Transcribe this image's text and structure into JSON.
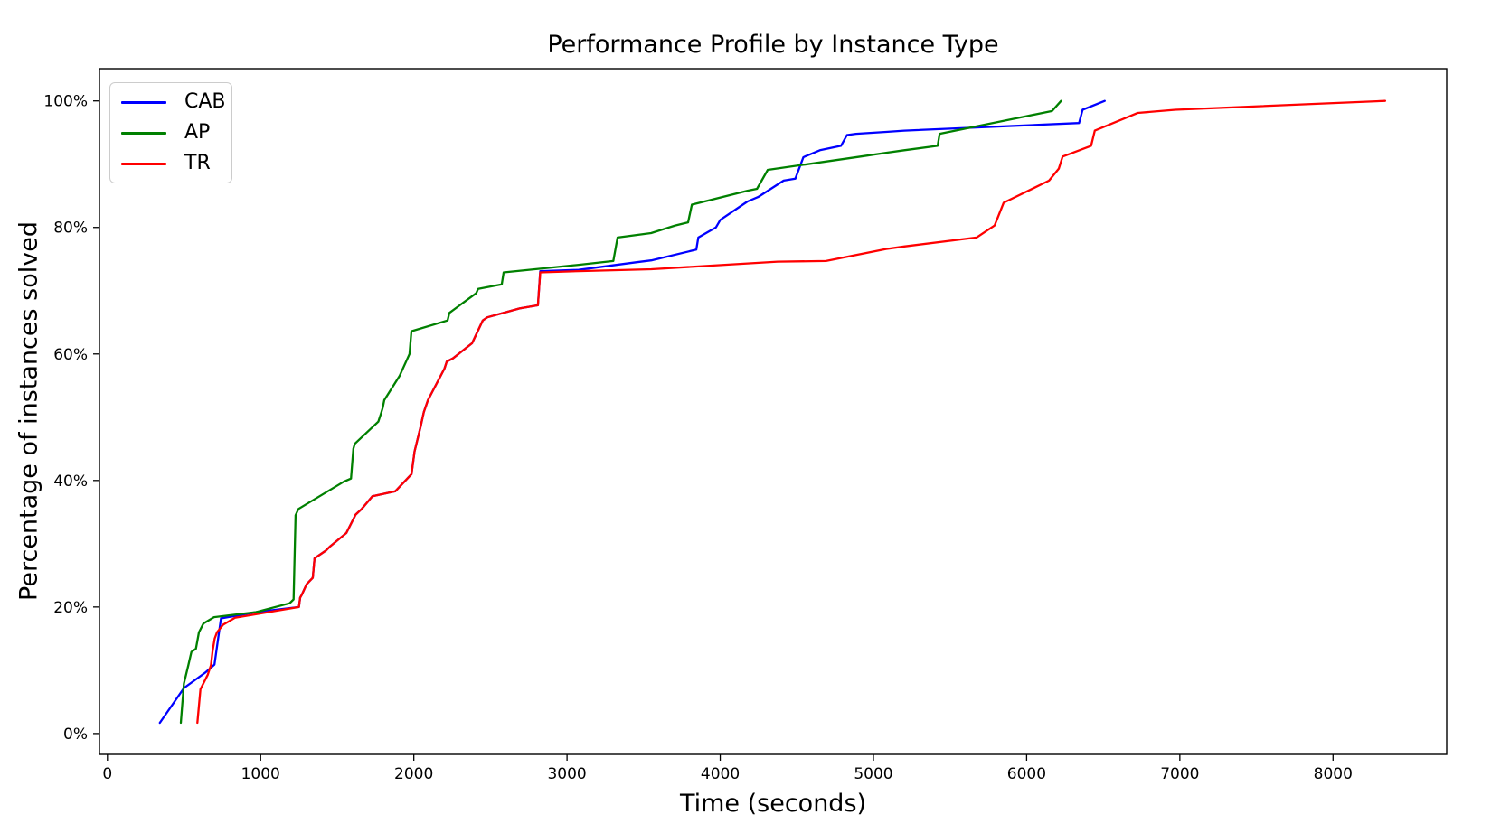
{
  "chart_data": {
    "type": "line",
    "title": "Performance Profile by Instance Type",
    "xlabel": "Time (seconds)",
    "ylabel": "Percentage of instances solved",
    "x_ticks": [
      0,
      1000,
      2000,
      3000,
      4000,
      5000,
      6000,
      7000,
      8000
    ],
    "x_tick_labels": [
      "0",
      "1000",
      "2000",
      "3000",
      "4000",
      "5000",
      "6000",
      "7000",
      "8000"
    ],
    "y_ticks": [
      0,
      20,
      40,
      60,
      80,
      100
    ],
    "y_tick_labels": [
      "0%",
      "20%",
      "40%",
      "60%",
      "80%",
      "100%"
    ],
    "xlim": [
      -52,
      8742
    ],
    "ylim": [
      -3.3,
      105.1
    ],
    "grid": false,
    "background_color": "#ffffff",
    "axis_color": "#000000",
    "legend": {
      "position": "upper-left",
      "entries": [
        "CAB",
        "AP",
        "TR"
      ]
    },
    "series": [
      {
        "name": "CAB",
        "color": "#0000ff",
        "points": [
          [
            342,
            1.7
          ],
          [
            500,
            7.2
          ],
          [
            637,
            9.6
          ],
          [
            699,
            10.9
          ],
          [
            741,
            18.2
          ],
          [
            971,
            19.2
          ],
          [
            1250,
            20.0
          ],
          [
            1258,
            21.5
          ],
          [
            1270,
            22.0
          ],
          [
            1300,
            23.6
          ],
          [
            1340,
            24.6
          ],
          [
            1352,
            27.7
          ],
          [
            1425,
            28.9
          ],
          [
            1455,
            29.6
          ],
          [
            1560,
            31.7
          ],
          [
            1620,
            34.6
          ],
          [
            1660,
            35.5
          ],
          [
            1730,
            37.5
          ],
          [
            1880,
            38.3
          ],
          [
            1985,
            41.0
          ],
          [
            2005,
            44.6
          ],
          [
            2043,
            48.4
          ],
          [
            2065,
            50.8
          ],
          [
            2092,
            52.7
          ],
          [
            2200,
            57.7
          ],
          [
            2215,
            58.8
          ],
          [
            2255,
            59.3
          ],
          [
            2380,
            61.7
          ],
          [
            2450,
            65.3
          ],
          [
            2480,
            65.8
          ],
          [
            2690,
            67.2
          ],
          [
            2810,
            67.7
          ],
          [
            2825,
            73.1
          ],
          [
            3076,
            73.3
          ],
          [
            3450,
            74.5
          ],
          [
            3550,
            74.8
          ],
          [
            3844,
            76.5
          ],
          [
            3857,
            78.4
          ],
          [
            3972,
            80.0
          ],
          [
            4001,
            81.2
          ],
          [
            4178,
            84.1
          ],
          [
            4247,
            84.8
          ],
          [
            4414,
            87.4
          ],
          [
            4490,
            87.7
          ],
          [
            4543,
            91.1
          ],
          [
            4651,
            92.2
          ],
          [
            4788,
            92.9
          ],
          [
            4827,
            94.6
          ],
          [
            4886,
            94.8
          ],
          [
            5083,
            95.1
          ],
          [
            5201,
            95.3
          ],
          [
            6342,
            96.5
          ],
          [
            6365,
            98.6
          ],
          [
            6510,
            100.0
          ]
        ]
      },
      {
        "name": "AP",
        "color": "#008000",
        "points": [
          [
            479,
            1.7
          ],
          [
            499,
            7.9
          ],
          [
            528,
            10.8
          ],
          [
            548,
            12.9
          ],
          [
            578,
            13.4
          ],
          [
            597,
            16.0
          ],
          [
            627,
            17.4
          ],
          [
            696,
            18.4
          ],
          [
            971,
            19.2
          ],
          [
            1190,
            20.6
          ],
          [
            1215,
            21.2
          ],
          [
            1228,
            34.5
          ],
          [
            1247,
            35.5
          ],
          [
            1542,
            39.8
          ],
          [
            1590,
            40.3
          ],
          [
            1605,
            45.0
          ],
          [
            1615,
            45.8
          ],
          [
            1768,
            49.3
          ],
          [
            1785,
            50.5
          ],
          [
            1797,
            51.5
          ],
          [
            1807,
            52.7
          ],
          [
            1906,
            56.5
          ],
          [
            1972,
            60.0
          ],
          [
            1984,
            63.6
          ],
          [
            2220,
            65.3
          ],
          [
            2232,
            66.5
          ],
          [
            2407,
            69.6
          ],
          [
            2420,
            70.3
          ],
          [
            2574,
            71.0
          ],
          [
            2586,
            72.9
          ],
          [
            3076,
            74.1
          ],
          [
            3302,
            74.7
          ],
          [
            3330,
            78.4
          ],
          [
            3549,
            79.1
          ],
          [
            3706,
            80.3
          ],
          [
            3790,
            80.8
          ],
          [
            3815,
            83.6
          ],
          [
            4178,
            85.8
          ],
          [
            4240,
            86.1
          ],
          [
            4310,
            89.1
          ],
          [
            4916,
            91.2
          ],
          [
            5083,
            91.8
          ],
          [
            5201,
            92.2
          ],
          [
            5419,
            92.9
          ],
          [
            5432,
            94.8
          ],
          [
            6166,
            98.4
          ],
          [
            6225,
            100.0
          ]
        ]
      },
      {
        "name": "TR",
        "color": "#ff0000",
        "points": [
          [
            587,
            1.7
          ],
          [
            607,
            7.0
          ],
          [
            655,
            9.3
          ],
          [
            676,
            10.8
          ],
          [
            686,
            12.9
          ],
          [
            700,
            15.0
          ],
          [
            715,
            16.0
          ],
          [
            755,
            17.2
          ],
          [
            833,
            18.3
          ],
          [
            1250,
            20.0
          ],
          [
            1258,
            21.5
          ],
          [
            1270,
            22.0
          ],
          [
            1300,
            23.6
          ],
          [
            1340,
            24.6
          ],
          [
            1352,
            27.7
          ],
          [
            1425,
            28.9
          ],
          [
            1455,
            29.6
          ],
          [
            1560,
            31.7
          ],
          [
            1620,
            34.6
          ],
          [
            1660,
            35.5
          ],
          [
            1730,
            37.5
          ],
          [
            1880,
            38.3
          ],
          [
            1985,
            41.0
          ],
          [
            2005,
            44.6
          ],
          [
            2043,
            48.4
          ],
          [
            2065,
            50.8
          ],
          [
            2092,
            52.7
          ],
          [
            2200,
            57.7
          ],
          [
            2215,
            58.8
          ],
          [
            2255,
            59.3
          ],
          [
            2380,
            61.7
          ],
          [
            2450,
            65.3
          ],
          [
            2480,
            65.8
          ],
          [
            2690,
            67.2
          ],
          [
            2810,
            67.7
          ],
          [
            2825,
            72.9
          ],
          [
            3076,
            73.1
          ],
          [
            3550,
            73.4
          ],
          [
            4375,
            74.6
          ],
          [
            4690,
            74.7
          ],
          [
            5083,
            76.6
          ],
          [
            5201,
            77.0
          ],
          [
            5673,
            78.4
          ],
          [
            5791,
            80.3
          ],
          [
            5850,
            83.9
          ],
          [
            6146,
            87.4
          ],
          [
            6210,
            89.3
          ],
          [
            6235,
            91.2
          ],
          [
            6421,
            92.9
          ],
          [
            6445,
            95.3
          ],
          [
            6725,
            98.1
          ],
          [
            6970,
            98.6
          ],
          [
            8340,
            100.0
          ]
        ]
      }
    ]
  }
}
